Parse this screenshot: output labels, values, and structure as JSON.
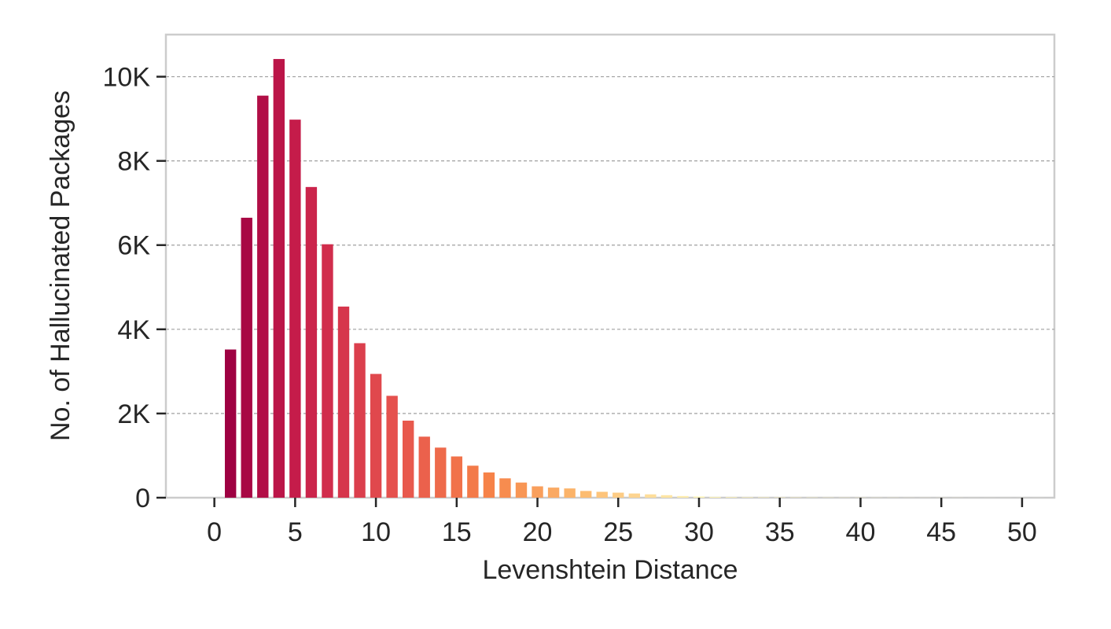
{
  "chart_data": {
    "type": "bar",
    "xlabel": "Levenshtein Distance",
    "ylabel": "No. of Hallucinated Packages",
    "xlim": [
      -3,
      52
    ],
    "ylim": [
      0,
      11000
    ],
    "x_ticks": [
      0,
      5,
      10,
      15,
      20,
      25,
      30,
      35,
      40,
      45,
      50
    ],
    "x_tick_labels": [
      "0",
      "5",
      "10",
      "15",
      "20",
      "25",
      "30",
      "35",
      "40",
      "45",
      "50"
    ],
    "y_ticks": [
      0,
      2000,
      4000,
      6000,
      8000,
      10000
    ],
    "y_tick_labels": [
      "0",
      "2K",
      "4K",
      "6K",
      "8K",
      "10K"
    ],
    "grid": "horizontal dashed",
    "colormap": "crimson-to-pale-yellow (dark red at low distance, light yellow at high distance)",
    "x": [
      1,
      2,
      3,
      4,
      5,
      6,
      7,
      8,
      9,
      10,
      11,
      12,
      13,
      14,
      15,
      16,
      17,
      18,
      19,
      20,
      21,
      22,
      23,
      24,
      25,
      26,
      27,
      28,
      29,
      30,
      31,
      32,
      33,
      34,
      35,
      36,
      37,
      38,
      39,
      40,
      41,
      42,
      43,
      44,
      45,
      46,
      47,
      48,
      49,
      50,
      51
    ],
    "values": [
      3520,
      6650,
      9550,
      10420,
      8980,
      7380,
      6020,
      4540,
      3670,
      2940,
      2420,
      1830,
      1450,
      1190,
      980,
      760,
      600,
      460,
      360,
      270,
      240,
      220,
      160,
      140,
      120,
      100,
      80,
      60,
      40,
      30,
      20,
      15,
      12,
      10,
      8,
      7,
      6,
      5,
      4,
      4,
      3,
      3,
      2,
      2,
      2,
      2,
      1,
      1,
      1,
      1,
      1
    ]
  }
}
